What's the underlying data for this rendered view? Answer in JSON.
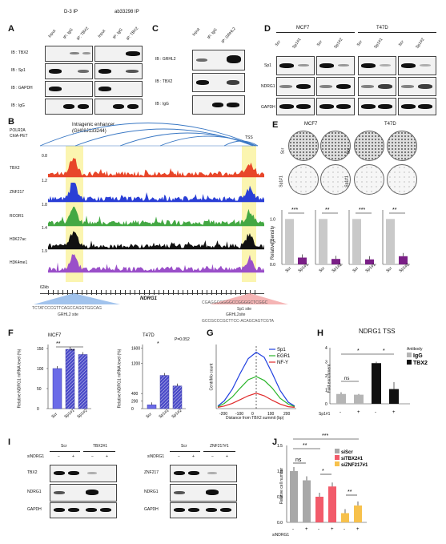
{
  "panel_a": {
    "letter": "A",
    "ip_groups": [
      "D-3 IP",
      "ab33298 IP"
    ],
    "lanes": [
      "Input",
      "IP: IgG",
      "IP: TBX2",
      "Input",
      "IP: IgG",
      "IP: TBX2"
    ],
    "ib_rows": [
      "IB : TBX2",
      "IB : Sp1",
      "IB : GAPDH",
      "IB : IgG"
    ]
  },
  "panel_b": {
    "letter": "B",
    "chia_label": "POLR2A\nChIA-PET",
    "enhancer": "Intragenic enhancer\n(GH08J133244)",
    "tss": "TSS",
    "tracks": [
      {
        "name": "TBX2",
        "scale": "0.8",
        "color": "#e8462a"
      },
      {
        "name": "ZNF217",
        "scale": "1.2",
        "color": "#2a3fd6"
      },
      {
        "name": "RCOR1",
        "scale": "1.8",
        "color": "#43a843"
      },
      {
        "name": "H3K27ac",
        "scale": "1.4",
        "color": "#111111"
      },
      {
        "name": "H3K4me1",
        "scale": "1.9",
        "color": "#9a4fc9"
      }
    ],
    "scalebar": "62kb",
    "gene": "NDRG1",
    "seq_left": "TCTATCCCGTTCAGCCAGGTGGCAG",
    "site_left": "GRHL2 site",
    "seq_right_1": "CGAGGCGGGGCCGGGGCTCGGC",
    "site_right_1": "Sp1 site",
    "seq_right_2": "GCCGCCCGCTTCC-ACAGCAGTCGTA",
    "site_right_2": "GRHL2site"
  },
  "panel_c": {
    "letter": "C",
    "lanes": [
      "Input",
      "IP: IgG",
      "IP: GRHL2"
    ],
    "ib_rows": [
      "IB : GRHL2",
      "IB : TBX2",
      "IB : IgG"
    ]
  },
  "panel_d": {
    "letter": "D",
    "cells": [
      "MCF7",
      "T47D"
    ],
    "lanes": [
      "Scr",
      "Sp1#1",
      "Scr",
      "Sp1#2",
      "Scr",
      "Sp1#1",
      "Scr",
      "Sp1#2"
    ],
    "rows": [
      "Sp1",
      "NDRG1",
      "GAPDH"
    ]
  },
  "panel_e": {
    "letter": "E",
    "cells": [
      "MCF7",
      "T47D"
    ],
    "row_labels": [
      "Scr",
      "Sp1#1",
      "Scr",
      "Sp1#2",
      "Scr",
      "Sp1#1",
      "Scr",
      "Sp1#2"
    ],
    "ylabel": "Relative density",
    "sig": [
      "***",
      "**",
      "***",
      "**"
    ]
  },
  "panel_f": {
    "letter": "F",
    "left_title": "MCF7",
    "right_title": "T47D",
    "left_ylabel": "Relative NDRG1 mRNA level (%)",
    "right_ylabel": "Relative NDRG1 mRNA level (%)",
    "pval": "P=0.052",
    "sig_left": [
      "**",
      "**"
    ],
    "sig_right": [
      "*"
    ]
  },
  "panel_g": {
    "letter": "G",
    "ylabel": "CentriMo count",
    "xlabel": "Distance from TBX2 summit (bp)",
    "xticks": [
      "-200",
      "-100",
      "0",
      "100",
      "200"
    ],
    "legend": [
      "Sp1",
      "EGR1",
      "NF-Y"
    ]
  },
  "panel_h": {
    "letter": "H",
    "title": "NDRG1 TSS",
    "ylabel": "Fold enrichment",
    "legend_title": "Antibody",
    "legend": [
      "IgG",
      "TBX2"
    ],
    "xrow_label": "Sp1#1",
    "x_signs": [
      "-",
      "+",
      "-",
      "+"
    ],
    "sig": [
      "*",
      "*",
      "ns"
    ],
    "yticks": [
      "0",
      "1",
      "2",
      "3",
      "4"
    ]
  },
  "panel_i": {
    "letter": "I",
    "left_groups": [
      "Scr",
      "TBX2#1"
    ],
    "right_groups": [
      "Scr",
      "ZNF217#1"
    ],
    "sirow": "siNDRG1",
    "signs": [
      "−",
      "+",
      "−",
      "+"
    ],
    "left_rows": [
      "TBX2",
      "NDRG1",
      "GAPDH"
    ],
    "right_rows": [
      "ZNF217",
      "NDRG1",
      "GAPDH"
    ]
  },
  "panel_j": {
    "letter": "J",
    "ylabel": "Relative cell number",
    "legend": [
      "siScr",
      "siTBX2#1",
      "siZNF217#1"
    ],
    "xrow_label": "siNDRG1",
    "x_signs": [
      "-",
      "+",
      "-",
      "+",
      "-",
      "+"
    ],
    "sig": [
      "***",
      "**",
      "ns",
      "*",
      "**"
    ],
    "yticks": [
      "0.0",
      "0.5",
      "1.0",
      "1.5"
    ]
  },
  "chart_data": [
    {
      "type": "bar",
      "panel": "E",
      "series": [
        {
          "name": "MCF7 Sp1#1",
          "categories": [
            "Scr",
            "Sp1#1"
          ],
          "values": [
            1.0,
            0.15
          ]
        },
        {
          "name": "MCF7 Sp1#2",
          "categories": [
            "Scr",
            "Sp1#2"
          ],
          "values": [
            1.0,
            0.12
          ]
        },
        {
          "name": "T47D Sp1#1",
          "categories": [
            "Scr",
            "Sp1#1"
          ],
          "values": [
            1.0,
            0.11
          ]
        },
        {
          "name": "T47D Sp1#2",
          "categories": [
            "Scr",
            "Sp1#2"
          ],
          "values": [
            1.0,
            0.18
          ]
        }
      ],
      "ylim": [
        0,
        1.2
      ]
    },
    {
      "type": "bar",
      "panel": "F-left",
      "categories": [
        "Scr",
        "Sp1#1",
        "Sp1#2"
      ],
      "values": [
        100,
        148,
        135
      ],
      "ylim": [
        0,
        160
      ]
    },
    {
      "type": "bar",
      "panel": "F-right",
      "categories": [
        "Scr",
        "Sp1#1",
        "Sp1#2"
      ],
      "values": [
        100,
        880,
        600
      ],
      "ylim": [
        0,
        1700
      ]
    },
    {
      "type": "line",
      "panel": "G",
      "x": [
        -240,
        -200,
        -150,
        -100,
        -50,
        0,
        50,
        100,
        150,
        200,
        240
      ],
      "series": [
        {
          "name": "Sp1",
          "values": [
            4,
            12,
            30,
            55,
            78,
            88,
            80,
            55,
            28,
            10,
            4
          ]
        },
        {
          "name": "EGR1",
          "values": [
            3,
            8,
            18,
            32,
            45,
            50,
            44,
            32,
            16,
            7,
            3
          ]
        },
        {
          "name": "NF-Y",
          "values": [
            2,
            4,
            8,
            14,
            20,
            24,
            20,
            13,
            7,
            3,
            2
          ]
        }
      ]
    },
    {
      "type": "bar",
      "panel": "H",
      "categories": [
        "IgG -",
        "IgG +",
        "TBX2 -",
        "TBX2 +"
      ],
      "values": [
        0.7,
        0.65,
        2.9,
        1.05
      ],
      "ylim": [
        0,
        4
      ]
    },
    {
      "type": "bar",
      "panel": "J",
      "categories": [
        "siScr -",
        "siScr +",
        "siTBX2#1 -",
        "siTBX2#1 +",
        "siZNF217#1 -",
        "siZNF217#1 +"
      ],
      "values": [
        1.0,
        0.82,
        0.5,
        0.7,
        0.18,
        0.33
      ],
      "ylim": [
        0,
        1.5
      ]
    }
  ]
}
